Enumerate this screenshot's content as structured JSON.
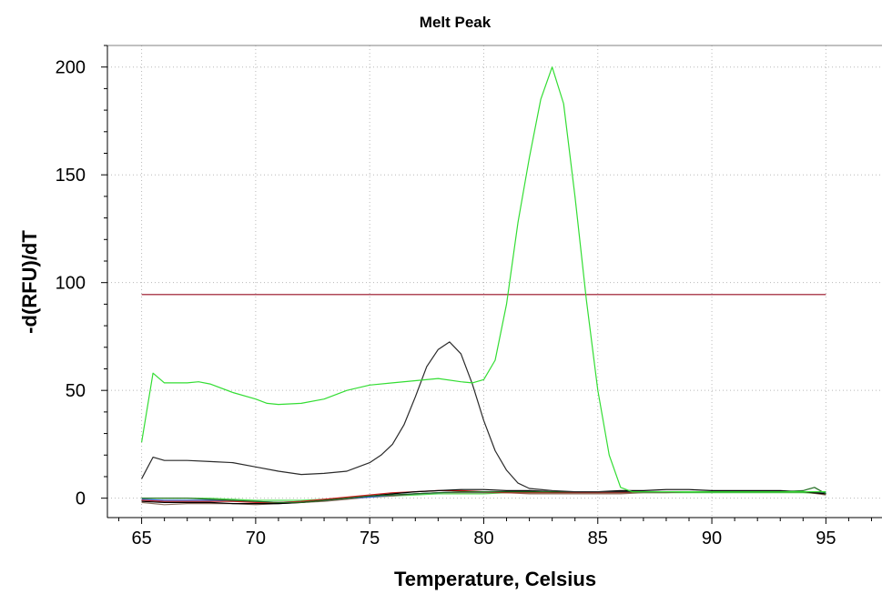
{
  "chart_data": {
    "type": "line",
    "title": "Melt Peak",
    "xlabel": "Temperature, Celsius",
    "ylabel": "-d(RFU)/dT",
    "xlim": [
      63.5,
      97.5
    ],
    "ylim": [
      -9,
      210
    ],
    "xticks": [
      65,
      70,
      75,
      80,
      85,
      90,
      95
    ],
    "yticks": [
      0,
      50,
      100,
      150,
      200
    ],
    "grid": true,
    "threshold": {
      "y": 94.5,
      "x": [
        65,
        95
      ],
      "color": "#b04858"
    },
    "series": [
      {
        "color": "#33dd33",
        "width": 1.2,
        "x": [
          65,
          65.5,
          66,
          67,
          67.5,
          68,
          69,
          70,
          70.5,
          71,
          72,
          73,
          74,
          75,
          76,
          77,
          78,
          79,
          79.5,
          80,
          80.5,
          81,
          81.5,
          82,
          82.5,
          83,
          83.5,
          84,
          84.5,
          85,
          85.5,
          86,
          86.5,
          87,
          88,
          89,
          90,
          91,
          92,
          93,
          94,
          94.5,
          95
        ],
        "y": [
          26,
          58,
          53.5,
          53.5,
          54,
          53,
          49,
          46,
          44,
          43.5,
          44,
          46,
          50,
          52.5,
          53.5,
          54.5,
          55.5,
          54,
          53.5,
          55,
          64,
          90,
          128,
          158,
          185,
          200,
          183,
          140,
          92,
          50,
          20,
          5,
          3,
          3,
          3,
          3,
          3,
          3,
          3,
          3,
          3,
          3,
          3
        ]
      },
      {
        "color": "#2a2a2a",
        "width": 1.2,
        "x": [
          65,
          65.5,
          66,
          67,
          68,
          69,
          70,
          71,
          72,
          73,
          74,
          75,
          75.5,
          76,
          76.5,
          77,
          77.5,
          78,
          78.5,
          79,
          79.5,
          80,
          80.5,
          81,
          81.5,
          82,
          83,
          84,
          85,
          86,
          87,
          88,
          89,
          90,
          91,
          92,
          93,
          94,
          95
        ],
        "y": [
          9,
          19,
          17.5,
          17.5,
          17,
          16.5,
          14.5,
          12.5,
          11,
          11.5,
          12.5,
          16.5,
          20,
          25,
          34,
          47,
          61,
          69,
          72.5,
          67,
          53,
          36,
          22,
          13,
          7,
          4.5,
          3.5,
          3,
          3,
          3,
          3,
          3,
          3,
          3,
          3,
          3,
          3,
          3,
          3
        ]
      },
      {
        "color": "#1e6b1e",
        "width": 1.4,
        "x": [
          65,
          66,
          67,
          68,
          69,
          70,
          71,
          72,
          73,
          74,
          75,
          76,
          77,
          78,
          79,
          80,
          81,
          82,
          83,
          84,
          85,
          86,
          87,
          88,
          89,
          90,
          91,
          92,
          93,
          94,
          94.5,
          95
        ],
        "y": [
          0,
          0,
          0,
          -0.5,
          -1,
          -1.5,
          -2,
          -2,
          -1,
          0,
          1,
          1.5,
          2,
          2.5,
          3,
          3,
          3,
          3,
          3,
          3,
          3,
          3,
          3,
          3,
          3,
          3,
          3,
          3,
          3,
          3.5,
          5,
          2
        ]
      },
      {
        "color": "#000000",
        "width": 1.2,
        "x": [
          65,
          66,
          67,
          68,
          69,
          70,
          71,
          72,
          73,
          74,
          75,
          76,
          77,
          78,
          79,
          80,
          81,
          82,
          83,
          84,
          85,
          86,
          87,
          88,
          89,
          90,
          91,
          92,
          93,
          94,
          95
        ],
        "y": [
          -1.5,
          -2,
          -2,
          -2,
          -2.5,
          -2.5,
          -2.5,
          -2,
          -1,
          0,
          1,
          2,
          3,
          3.5,
          4,
          4,
          3.5,
          3.5,
          3,
          3,
          3,
          3.5,
          3.5,
          4,
          4,
          3.5,
          3.5,
          3.5,
          3.5,
          3,
          2
        ]
      },
      {
        "color": "#cc2222",
        "width": 1.1,
        "x": [
          65,
          66,
          67,
          68,
          69,
          70,
          71,
          72,
          73,
          74,
          75,
          76,
          77,
          78,
          79,
          80,
          81,
          82,
          83,
          84,
          85,
          86,
          87,
          88,
          89,
          90,
          91,
          92,
          93,
          94,
          95
        ],
        "y": [
          -1,
          -1.5,
          -1.5,
          -1.5,
          -1.5,
          -2,
          -2,
          -1.5,
          -0.5,
          0.5,
          1.5,
          2.5,
          3,
          3.5,
          3.5,
          3,
          2.5,
          2.5,
          2.5,
          2.5,
          2.5,
          2.5,
          3,
          3,
          3,
          3,
          3,
          3,
          3,
          3,
          2
        ]
      },
      {
        "color": "#3366dd",
        "width": 1.1,
        "x": [
          65,
          66,
          67,
          68,
          69,
          70,
          71,
          72,
          73,
          74,
          75,
          76,
          77,
          78,
          79,
          80,
          81,
          82,
          83,
          84,
          85,
          86,
          87,
          88,
          89,
          90,
          91,
          92,
          93,
          94,
          95
        ],
        "y": [
          -0.5,
          -1,
          -1,
          -1,
          -1.5,
          -1.5,
          -2,
          -1.5,
          -1,
          0,
          0.5,
          1.5,
          2,
          2.5,
          3,
          3,
          3,
          3,
          3,
          3,
          3,
          3,
          3,
          3,
          3,
          3,
          3,
          3,
          3,
          3,
          2.5
        ]
      },
      {
        "color": "#8a7060",
        "width": 1.1,
        "x": [
          65,
          66,
          67,
          68,
          69,
          70,
          71,
          72,
          73,
          74,
          75,
          76,
          77,
          78,
          79,
          80,
          81,
          82,
          83,
          84,
          85,
          86,
          87,
          88,
          89,
          90,
          91,
          92,
          93,
          94,
          95
        ],
        "y": [
          -2,
          -3,
          -2.5,
          -2.5,
          -2.5,
          -3,
          -2.5,
          -2,
          -1.5,
          -0.5,
          0.5,
          1,
          2,
          2.5,
          2.5,
          2.5,
          2.5,
          2,
          2,
          2,
          2,
          2,
          2.5,
          2.5,
          3,
          3,
          3,
          3,
          3,
          3,
          1.5
        ]
      },
      {
        "color": "#55dd55",
        "width": 1.1,
        "x": [
          65,
          66,
          67,
          68,
          69,
          70,
          71,
          72,
          73,
          74,
          75,
          76,
          77,
          78,
          79,
          80,
          81,
          82,
          83,
          84,
          85,
          86,
          87,
          88,
          89,
          90,
          91,
          92,
          93,
          94,
          95
        ],
        "y": [
          0,
          0,
          0,
          0,
          -0.5,
          -1,
          -1,
          -1,
          -0.5,
          0,
          0.5,
          1,
          1.5,
          2,
          2,
          2,
          2.5,
          2.5,
          2.5,
          2.5,
          2.5,
          2.5,
          2.5,
          2.5,
          2.5,
          2.5,
          2.5,
          2.5,
          2.5,
          2.5,
          2
        ]
      }
    ]
  }
}
